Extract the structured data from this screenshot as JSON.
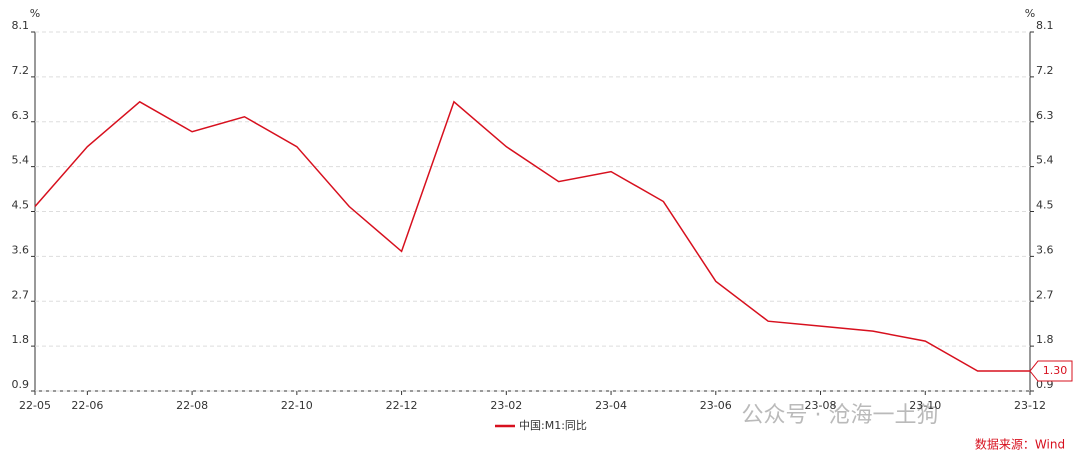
{
  "chart_data": {
    "type": "line",
    "y_unit": "%",
    "categories": [
      "22-05",
      "22-06",
      null,
      "22-08",
      null,
      "22-10",
      null,
      "22-12",
      null,
      "23-02",
      null,
      "23-04",
      null,
      "23-06",
      null,
      "23-08",
      null,
      "23-10",
      null,
      "23-12"
    ],
    "series": [
      {
        "name": "中国:M1:同比",
        "color": "#d7101e",
        "values": [
          4.6,
          5.8,
          6.7,
          6.1,
          6.4,
          5.8,
          4.6,
          3.7,
          6.7,
          5.8,
          5.1,
          5.3,
          4.7,
          3.1,
          2.3,
          2.2,
          2.1,
          1.9,
          1.3,
          1.3
        ],
        "value_labels": [
          null,
          null,
          null,
          null,
          null,
          null,
          null,
          null,
          null,
          null,
          null,
          null,
          null,
          null,
          null,
          null,
          null,
          null,
          null,
          "1.30"
        ]
      }
    ],
    "ylim": [
      0.9,
      8.1
    ],
    "yticks": [
      0.9,
      1.8,
      2.7,
      3.6,
      4.5,
      5.4,
      6.3,
      7.2,
      8.1
    ],
    "y2lim": [
      0.9,
      8.1
    ],
    "y2ticks": [
      0.9,
      1.8,
      2.7,
      3.6,
      4.5,
      5.4,
      6.3,
      7.2,
      8.1
    ],
    "grid": true,
    "watermark": "公众号 · 沧海一土狗",
    "source": "数据来源：Wind"
  }
}
